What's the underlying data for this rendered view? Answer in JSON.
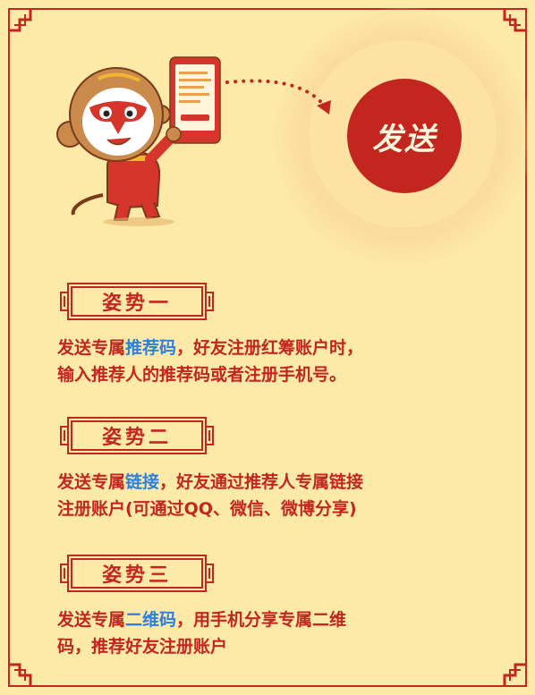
{
  "send_label": "发送",
  "sections": [
    {
      "title": "姿势一",
      "line1_pre": "发送专属",
      "line1_hl": "推荐码",
      "line1_post": "，好友注册红筹账户时，",
      "line2": "输入推荐人的推荐码或者注册手机号。"
    },
    {
      "title": "姿势二",
      "line1_pre": "发送专属",
      "line1_hl": "链接",
      "line1_post": "，好友通过推荐人专属链接",
      "line2": "注册账户(可通过QQ、微信、微博分享)"
    },
    {
      "title": "姿势三",
      "line1_pre": "发送专属",
      "line1_hl": "二维码",
      "line1_post": "，用手机分享专属二维",
      "line2": "码，推荐好友注册账户"
    }
  ],
  "colors": {
    "background": "#fdeaa8",
    "accent_red": "#c3261f",
    "highlight_blue": "#2f7fe0"
  }
}
